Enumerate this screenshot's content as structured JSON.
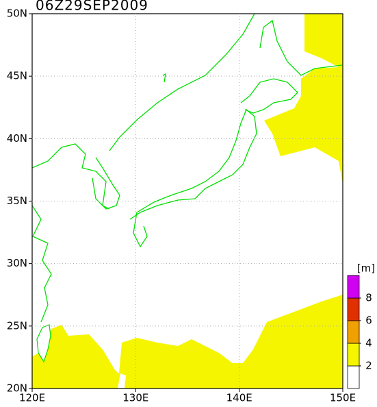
{
  "title": "06Z29SEP2009",
  "map": {
    "xlim": [
      120,
      150
    ],
    "ylim": [
      20,
      50
    ],
    "lon_ticks": [
      {
        "value": 120,
        "label": "120E"
      },
      {
        "value": 130,
        "label": "130E"
      },
      {
        "value": 140,
        "label": "140E"
      },
      {
        "value": 150,
        "label": "150E"
      }
    ],
    "lat_ticks": [
      {
        "value": 20,
        "label": "20N"
      },
      {
        "value": 25,
        "label": "25N"
      },
      {
        "value": 30,
        "label": "30N"
      },
      {
        "value": 35,
        "label": "35N"
      },
      {
        "value": 40,
        "label": "40N"
      },
      {
        "value": 45,
        "label": "45N"
      },
      {
        "value": 50,
        "label": "50N"
      }
    ]
  },
  "legend": {
    "unit": "[m]",
    "levels": [
      2,
      4,
      6,
      8
    ],
    "colors": [
      "#ffffff",
      "#f5f500",
      "#f0a000",
      "#e03000",
      "#d000f0"
    ]
  }
}
